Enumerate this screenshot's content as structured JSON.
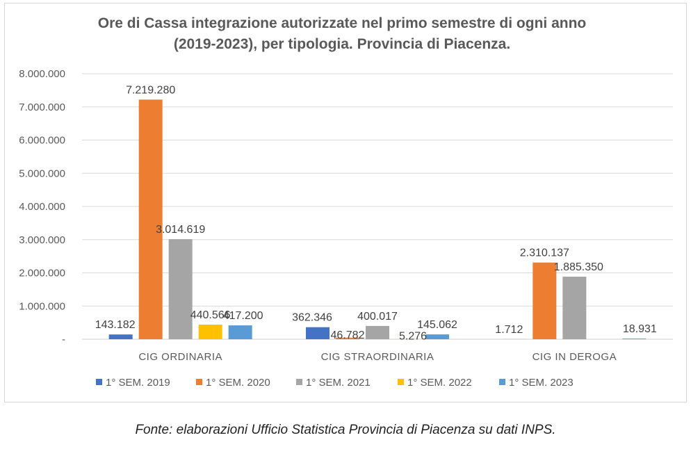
{
  "chart_data": {
    "type": "bar",
    "title_lines": [
      "Ore di Cassa integrazione autorizzate nel primo semestre di ogni anno",
      "(2019-2023), per tipologia. Provincia di Piacenza."
    ],
    "categories": [
      "CIG  ORDINARIA",
      "CIG  STRAORDINARIA",
      "CIG  IN DEROGA"
    ],
    "series": [
      {
        "name": "1° SEM. 2019",
        "color": "#4472c4",
        "values": [
          143182,
          362346,
          1712
        ],
        "labels": [
          "143.182",
          "362.346",
          "1.712"
        ]
      },
      {
        "name": "1° SEM. 2020",
        "color": "#ed7d31",
        "values": [
          7219280,
          46782,
          2310137
        ],
        "labels": [
          "7.219.280",
          "46.782",
          "2.310.137"
        ]
      },
      {
        "name": "1° SEM. 2021",
        "color": "#a5a5a5",
        "values": [
          3014619,
          400017,
          1885350
        ],
        "labels": [
          "3.014.619",
          "400.017",
          "1.885.350"
        ]
      },
      {
        "name": "1° SEM. 2022",
        "color": "#ffc000",
        "values": [
          440566,
          5276,
          0
        ],
        "labels": [
          "440.566",
          "5.276",
          ""
        ]
      },
      {
        "name": "1° SEM. 2023",
        "color": "#5b9bd5",
        "values": [
          417200,
          145062,
          18931
        ],
        "labels": [
          "417.200",
          "145.062",
          "18.931"
        ]
      }
    ],
    "yticks": [
      0,
      1000000,
      2000000,
      3000000,
      4000000,
      5000000,
      6000000,
      7000000,
      8000000
    ],
    "ytick_labels": [
      "-",
      "1.000.000",
      "2.000.000",
      "3.000.000",
      "4.000.000",
      "5.000.000",
      "6.000.000",
      "7.000.000",
      "8.000.000"
    ],
    "ylim": [
      0,
      8000000
    ],
    "grid": true,
    "legend": "bottom"
  },
  "source_note": "Fonte: elaborazioni Ufficio Statistica Provincia di Piacenza su dati INPS."
}
